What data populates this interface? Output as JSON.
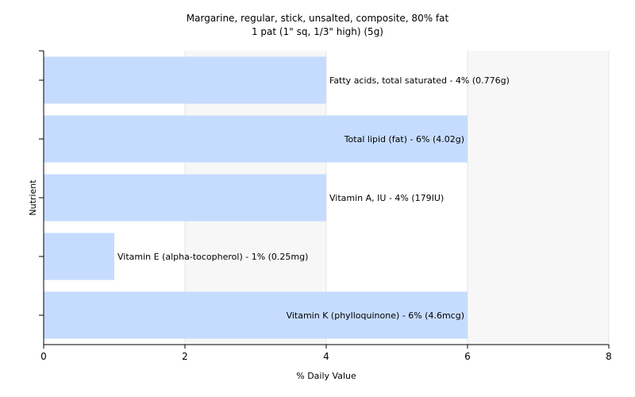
{
  "chart_data": {
    "type": "bar",
    "orientation": "horizontal",
    "title": "Margarine, regular, stick, unsalted, composite, 80% fat",
    "subtitle": "1 pat (1\" sq, 1/3\" high) (5g)",
    "xlabel": "% Daily Value",
    "ylabel": "Nutrient",
    "xlim": [
      0,
      8
    ],
    "xticks": [
      0,
      2,
      4,
      6,
      8
    ],
    "grid": true,
    "legend": "none",
    "bar_color": "#c6dcff",
    "bars": [
      {
        "value": 4,
        "label": "Fatty acids, total saturated - 4% (0.776g)"
      },
      {
        "value": 6,
        "label": "Total lipid (fat) - 6% (4.02g)"
      },
      {
        "value": 4,
        "label": "Vitamin A, IU - 4% (179IU)"
      },
      {
        "value": 1,
        "label": "Vitamin E (alpha-tocopherol) - 1% (0.25mg)"
      },
      {
        "value": 6,
        "label": "Vitamin K (phylloquinone) - 6% (4.6mcg)"
      }
    ]
  }
}
